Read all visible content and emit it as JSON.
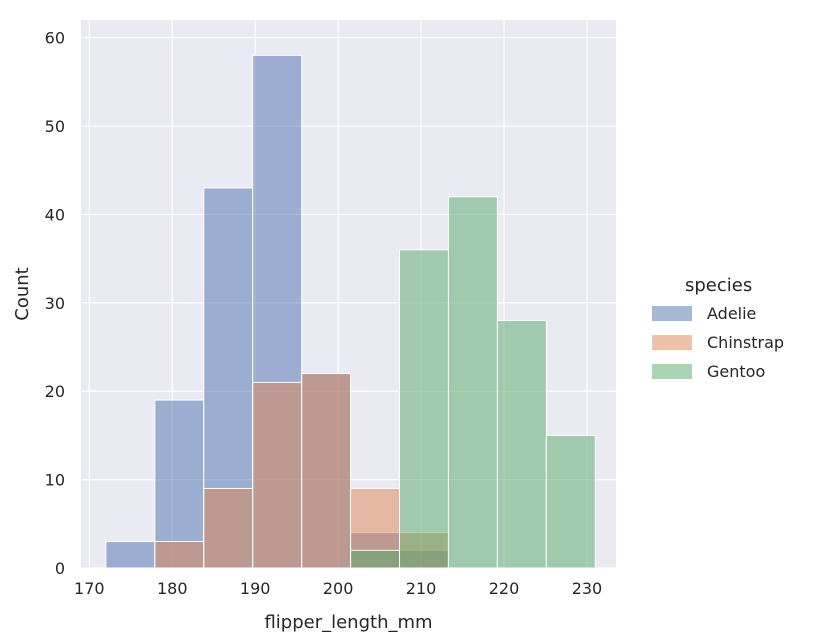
{
  "chart_data": {
    "type": "bar",
    "xlabel": "flipper_length_mm",
    "ylabel": "Count",
    "xlim": [
      169,
      233.5
    ],
    "ylim": [
      0,
      62
    ],
    "xticks": [
      170,
      180,
      190,
      200,
      210,
      220,
      230
    ],
    "yticks": [
      0,
      10,
      20,
      30,
      40,
      50,
      60
    ],
    "grid": true,
    "legend": {
      "title": "species",
      "position": "right"
    },
    "bin_edges": [
      172,
      177.9,
      183.8,
      189.7,
      195.6,
      201.5,
      207.4,
      213.3,
      219.2,
      225.1,
      231
    ],
    "series": [
      {
        "name": "Adelie",
        "color": "#4c72b0",
        "values": [
          3,
          19,
          43,
          58,
          22,
          4,
          2,
          0,
          0,
          0
        ]
      },
      {
        "name": "Chinstrap",
        "color": "#dd8452",
        "values": [
          0,
          3,
          9,
          21,
          22,
          9,
          4,
          0,
          0,
          0
        ]
      },
      {
        "name": "Gentoo",
        "color": "#55a868",
        "values": [
          0,
          0,
          0,
          0,
          0,
          2,
          36,
          42,
          28,
          15
        ]
      }
    ]
  }
}
